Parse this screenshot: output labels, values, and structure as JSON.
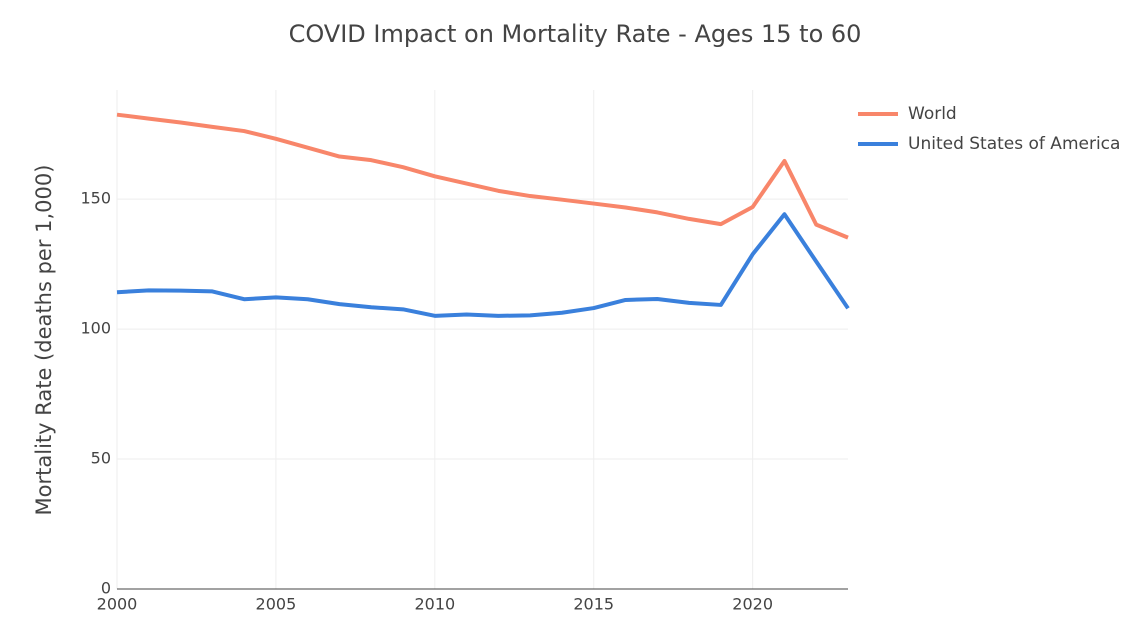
{
  "chart_data": {
    "type": "line",
    "title": "COVID Impact on Mortality Rate - Ages 15 to 60",
    "y_label": "Mortality Rate (deaths per 1,000)",
    "x": [
      2000,
      2001,
      2002,
      2003,
      2004,
      2005,
      2006,
      2007,
      2008,
      2009,
      2010,
      2011,
      2012,
      2013,
      2014,
      2015,
      2016,
      2017,
      2018,
      2019,
      2020,
      2021,
      2022,
      2023
    ],
    "series": [
      {
        "name": "World",
        "color": "#f8866a",
        "values": [
          182.5,
          181,
          179.5,
          177.8,
          176.2,
          173.2,
          169.8,
          166.4,
          165,
          162.3,
          158.8,
          156,
          153.2,
          151.2,
          149.8,
          148.3,
          146.8,
          144.9,
          142.4,
          140.4,
          147,
          164.7,
          140.2,
          135.2
        ]
      },
      {
        "name": "United States of America",
        "color": "#3a80dc",
        "values": [
          114.2,
          114.9,
          114.8,
          114.5,
          111.5,
          112.2,
          111.5,
          109.6,
          108.4,
          107.6,
          105.1,
          105.6,
          105.1,
          105.3,
          106.3,
          108.1,
          111.2,
          111.6,
          110.1,
          109.3,
          128.8,
          144.2,
          126,
          108
        ]
      }
    ],
    "xlim": [
      2000,
      2023
    ],
    "xticks": [
      2000,
      2005,
      2010,
      2015,
      2020
    ],
    "ylim": [
      0,
      192
    ],
    "yticks": [
      0,
      50,
      100,
      150
    ],
    "grid": true
  }
}
